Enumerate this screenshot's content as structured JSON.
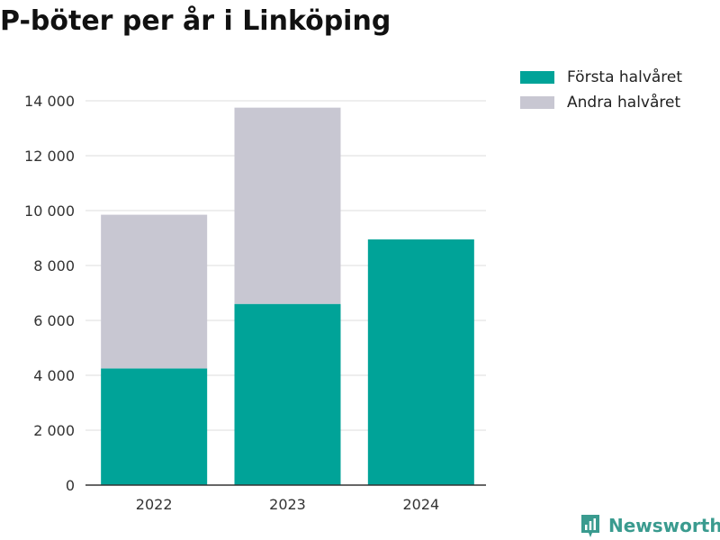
{
  "title": "P-böter per år i Linköping",
  "colors": {
    "first_half": "#00a398",
    "second_half": "#c8c7d2",
    "brand": "#3a9b8f",
    "axis": "#333333",
    "grid": "#dddddd"
  },
  "legend": {
    "items": [
      {
        "label": "Första halvåret",
        "color": "#00a398"
      },
      {
        "label": "Andra halvåret",
        "color": "#c8c7d2"
      }
    ]
  },
  "brand": {
    "name": "Newsworthy",
    "icon": "newsworthy-logo-icon"
  },
  "chart_data": {
    "type": "bar",
    "stacked": true,
    "title": "P-böter per år i Linköping",
    "categories": [
      "2022",
      "2023",
      "2024"
    ],
    "series": [
      {
        "name": "Första halvåret",
        "values": [
          4250,
          6600,
          8950
        ]
      },
      {
        "name": "Andra halvåret",
        "values": [
          5600,
          7150,
          0
        ]
      }
    ],
    "ylim": [
      0,
      14000
    ],
    "yticks": [
      0,
      2000,
      4000,
      6000,
      8000,
      10000,
      12000,
      14000
    ],
    "ytick_labels": [
      "0",
      "2 000",
      "4 000",
      "6 000",
      "8 000",
      "10 000",
      "12 000",
      "14 000"
    ],
    "grid": true,
    "legend_position": "top-right"
  }
}
